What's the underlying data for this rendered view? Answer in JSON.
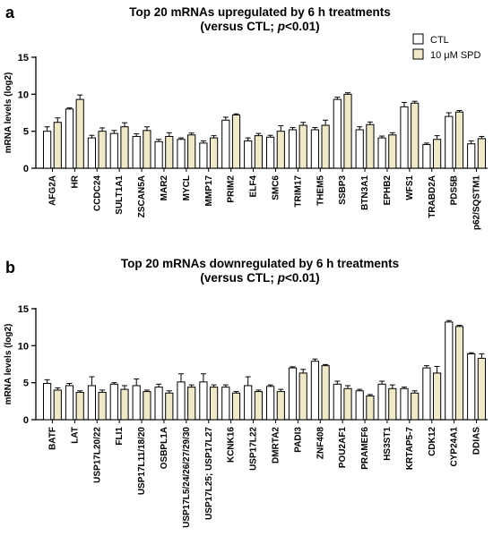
{
  "colors": {
    "CTL": "#ffffff",
    "10 μM SPD": "#efe8c9",
    "stroke": "#000000"
  },
  "legend": {
    "items": [
      "CTL",
      "10 μM SPD"
    ],
    "position": "top-right"
  },
  "chart_data": [
    {
      "panel": "a",
      "type": "bar",
      "title": [
        "Top 20 mRNAs upregulated by 6 h treatments",
        "(versus CTL; ",
        "p",
        "<0.01)"
      ],
      "ylabel": "mRNA levels (log2)",
      "ylim": [
        0,
        15
      ],
      "yticks": [
        0,
        5,
        10,
        15
      ],
      "categories": [
        "AFG2A",
        "HR",
        "CCDC24",
        "SULT1A1",
        "ZSCAN5A",
        "MAR2",
        "MYCL",
        "MMP17",
        "PRIM2",
        "ELF4",
        "SMC6",
        "TRIM17",
        "THEM5",
        "SSBP3",
        "BTN3A1",
        "EPHB2",
        "WFS1",
        "TRABD2A",
        "PDS5B",
        "p62/SQSTM1"
      ],
      "series": [
        {
          "name": "CTL",
          "values": [
            5.0,
            8.0,
            4.1,
            4.7,
            4.3,
            3.6,
            3.9,
            3.4,
            6.5,
            3.7,
            4.2,
            5.2,
            5.2,
            9.3,
            5.2,
            4.1,
            8.3,
            3.2,
            7.0,
            3.3
          ],
          "errors": [
            0.6,
            0.15,
            0.35,
            0.4,
            0.35,
            0.3,
            0.2,
            0.3,
            0.4,
            0.4,
            0.25,
            0.3,
            0.3,
            0.3,
            0.4,
            0.25,
            0.6,
            0.2,
            0.5,
            0.4
          ]
        },
        {
          "name": "10 μM SPD",
          "values": [
            6.2,
            9.3,
            5.0,
            5.6,
            5.1,
            4.3,
            4.5,
            4.1,
            7.2,
            4.4,
            5.0,
            5.8,
            5.8,
            10.0,
            5.9,
            4.5,
            8.8,
            3.9,
            7.6,
            4.0
          ],
          "errors": [
            0.6,
            0.6,
            0.45,
            0.55,
            0.5,
            0.5,
            0.25,
            0.3,
            0.15,
            0.3,
            0.75,
            0.4,
            0.7,
            0.2,
            0.35,
            0.3,
            0.25,
            0.5,
            0.2,
            0.3
          ]
        }
      ]
    },
    {
      "panel": "b",
      "type": "bar",
      "title": [
        "Top 20 mRNAs downregulated by 6 h treatments",
        "(versus CTL; ",
        "p",
        "<0.01)"
      ],
      "ylabel": "mRNA levels (log2)",
      "ylim": [
        0,
        15
      ],
      "yticks": [
        0,
        5,
        10,
        15
      ],
      "categories": [
        "BATF",
        "LAT",
        "USP17L20/22",
        "FLI1",
        "USP17L11/18/20",
        "OSBPL1A",
        "USP17L5/24/26/27/29/30",
        "USP17L25; USP17L27",
        "KCNK16",
        "USP17L22",
        "DMRTA2",
        "PADI3",
        "ZNF408",
        "POU2AF1",
        "PRAMEF6",
        "HS3ST1",
        "KRTAP5-7",
        "CDK12",
        "CYP24A1",
        "DDIAS"
      ],
      "series": [
        {
          "name": "CTL",
          "values": [
            4.9,
            4.6,
            4.6,
            4.8,
            4.6,
            4.4,
            5.1,
            5.1,
            4.4,
            4.6,
            4.5,
            7.0,
            7.9,
            4.8,
            3.9,
            4.8,
            4.2,
            7.0,
            13.2,
            8.9
          ],
          "errors": [
            0.5,
            0.3,
            1.2,
            0.2,
            0.9,
            0.4,
            1.1,
            1.1,
            0.3,
            1.2,
            0.2,
            0.15,
            0.3,
            0.4,
            0.2,
            0.4,
            0.2,
            0.3,
            0.2,
            0.15
          ]
        },
        {
          "name": "10 μM SPD",
          "values": [
            4.0,
            3.7,
            3.7,
            4.1,
            3.8,
            3.6,
            4.4,
            4.4,
            3.6,
            3.8,
            3.8,
            6.3,
            7.3,
            4.2,
            3.2,
            4.2,
            3.6,
            6.3,
            12.6,
            8.3
          ],
          "errors": [
            0.3,
            0.2,
            0.3,
            0.5,
            0.2,
            0.3,
            0.3,
            0.3,
            0.2,
            0.2,
            0.3,
            0.5,
            0.15,
            0.4,
            0.2,
            0.5,
            0.3,
            0.9,
            0.15,
            0.6
          ]
        }
      ]
    }
  ]
}
